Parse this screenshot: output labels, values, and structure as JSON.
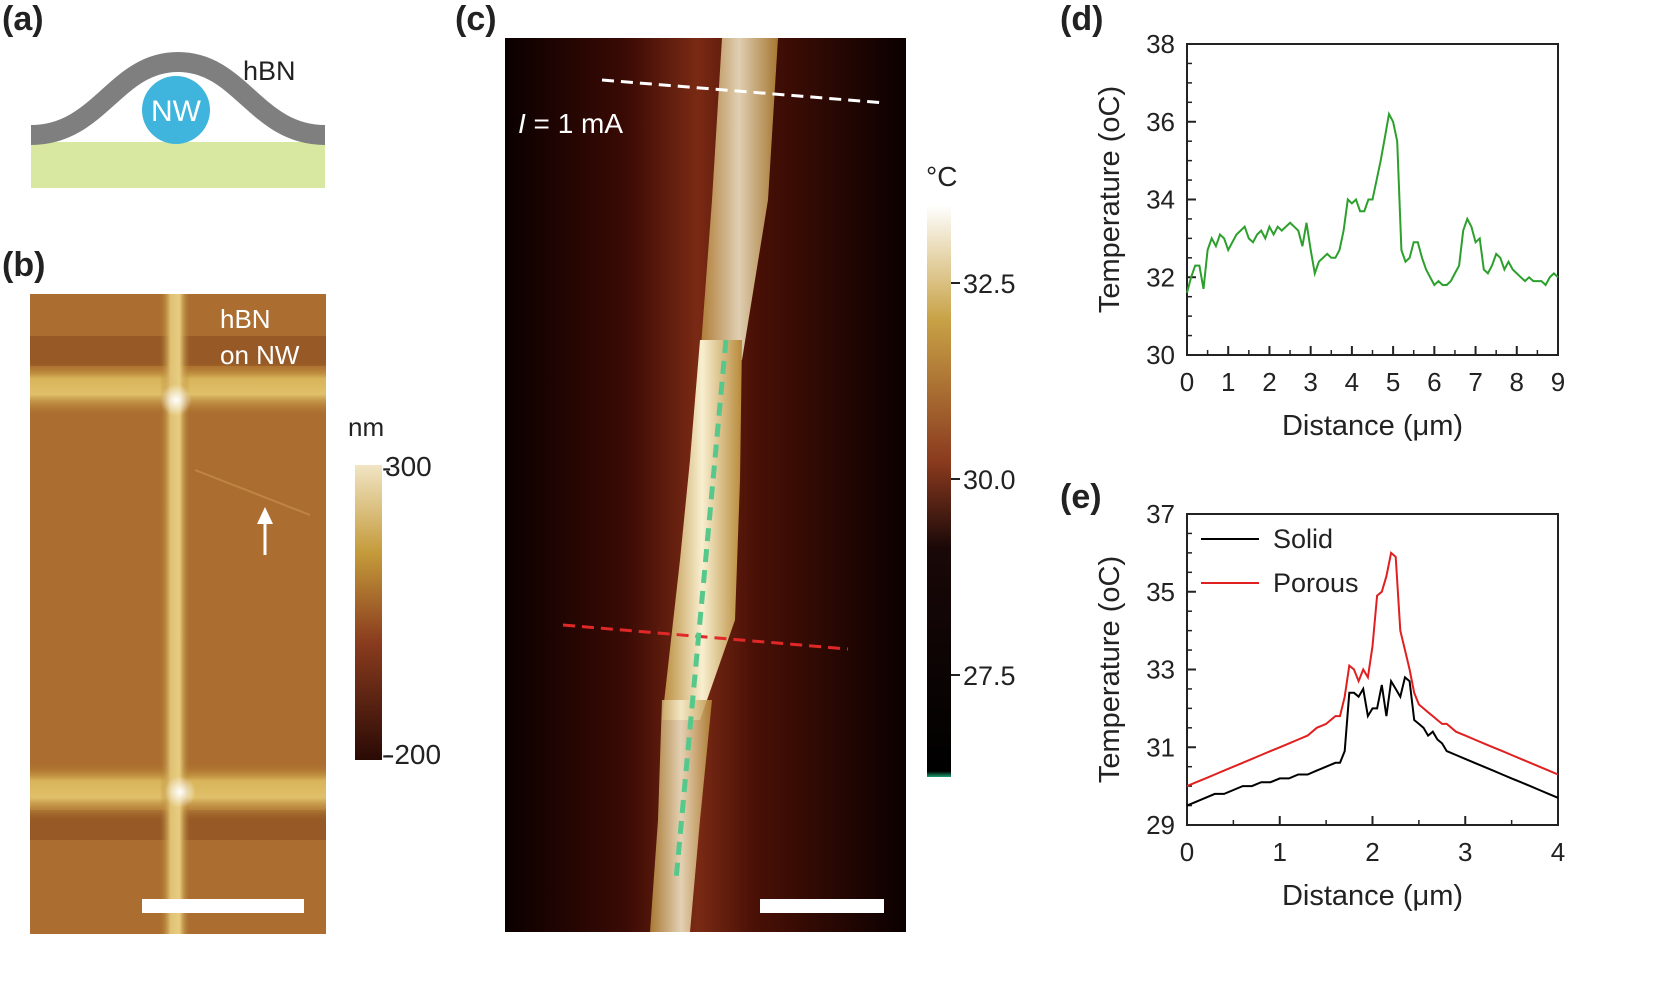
{
  "panels": {
    "a": {
      "label": "(a)",
      "material_label": "hBN",
      "wire_label": "NW",
      "colors": {
        "hbn": "#7f7f7f",
        "wire": "#3fb4dc",
        "substrate": "#d8e8a0"
      }
    },
    "b": {
      "label": "(b)",
      "image_caption_line1": "hBN",
      "image_caption_line2": "on NW",
      "colorbar_unit": "nm",
      "colorbar_max": "300",
      "colorbar_min": "-200"
    },
    "c": {
      "label": "(c)",
      "current_symbol": "I",
      "current_value": " = 1 mA",
      "colorbar_unit": "oC",
      "colorbar_ticks": [
        "32.5",
        "30.0",
        "27.5"
      ],
      "line_colors": {
        "white_cut": "#ffffff",
        "red_cut": "#e02828",
        "green_axis": "#56c88c"
      }
    },
    "d": {
      "label": "(d)",
      "xlabel": "Distance (μm)",
      "ylabel": "Temperature (oC)",
      "line_color": "#2ca02c"
    },
    "e": {
      "label": "(e)",
      "xlabel": "Distance (μm)",
      "ylabel": "Temperature (oC)",
      "legend": [
        "Solid",
        "Porous"
      ]
    }
  },
  "chart_data": [
    {
      "type": "line",
      "panel": "d",
      "xlabel": "Distance (μm)",
      "ylabel": "Temperature (oC)",
      "xlim": [
        0,
        9
      ],
      "ylim": [
        30,
        38
      ],
      "xticks": [
        0,
        1,
        2,
        3,
        4,
        5,
        6,
        7,
        8,
        9
      ],
      "yticks": [
        30,
        32,
        34,
        36,
        38
      ],
      "series": [
        {
          "color": "#2ca02c",
          "x": [
            0,
            0.1,
            0.2,
            0.3,
            0.4,
            0.5,
            0.6,
            0.7,
            0.8,
            0.9,
            1.0,
            1.1,
            1.2,
            1.3,
            1.4,
            1.5,
            1.6,
            1.7,
            1.8,
            1.9,
            2.0,
            2.1,
            2.2,
            2.3,
            2.4,
            2.5,
            2.6,
            2.7,
            2.8,
            2.9,
            3.0,
            3.1,
            3.2,
            3.3,
            3.4,
            3.5,
            3.6,
            3.7,
            3.8,
            3.9,
            4.0,
            4.1,
            4.2,
            4.3,
            4.4,
            4.5,
            4.6,
            4.7,
            4.8,
            4.9,
            5.0,
            5.1,
            5.2,
            5.3,
            5.4,
            5.5,
            5.6,
            5.7,
            5.8,
            5.9,
            6.0,
            6.1,
            6.2,
            6.3,
            6.4,
            6.5,
            6.6,
            6.7,
            6.8,
            6.9,
            7.0,
            7.1,
            7.2,
            7.3,
            7.4,
            7.5,
            7.6,
            7.7,
            7.8,
            7.9,
            8.0,
            8.1,
            8.2,
            8.3,
            8.4,
            8.5,
            8.6,
            8.7,
            8.8,
            8.9,
            9.0
          ],
          "y": [
            31.6,
            32.0,
            32.3,
            32.3,
            31.7,
            32.7,
            33.0,
            32.8,
            33.1,
            33.0,
            32.7,
            32.9,
            33.1,
            33.2,
            33.3,
            33.0,
            32.9,
            33.1,
            33.2,
            33.0,
            33.3,
            33.1,
            33.3,
            33.2,
            33.3,
            33.4,
            33.3,
            33.2,
            32.8,
            33.4,
            32.7,
            32.1,
            32.4,
            32.5,
            32.6,
            32.5,
            32.5,
            32.7,
            33.2,
            34.0,
            33.9,
            34.0,
            33.7,
            33.7,
            34.0,
            34.0,
            34.5,
            35.0,
            35.6,
            36.2,
            36.0,
            35.5,
            32.7,
            32.4,
            32.5,
            32.9,
            32.9,
            32.5,
            32.2,
            32.0,
            31.8,
            31.9,
            31.8,
            31.8,
            31.9,
            32.1,
            32.3,
            33.2,
            33.5,
            33.3,
            32.9,
            33.0,
            32.2,
            32.1,
            32.3,
            32.6,
            32.5,
            32.2,
            32.4,
            32.2,
            32.1,
            32.0,
            31.9,
            32.0,
            31.9,
            31.9,
            31.9,
            31.8,
            32.0,
            32.1,
            32.0
          ]
        }
      ]
    },
    {
      "type": "line",
      "panel": "e",
      "xlabel": "Distance (μm)",
      "ylabel": "Temperature (oC)",
      "xlim": [
        0,
        4
      ],
      "ylim": [
        29,
        37
      ],
      "xticks": [
        0,
        1,
        2,
        3,
        4
      ],
      "yticks": [
        29,
        31,
        33,
        35,
        37
      ],
      "legend": "top-left",
      "series": [
        {
          "name": "Solid",
          "color": "#000000",
          "x": [
            0,
            0.1,
            0.2,
            0.3,
            0.4,
            0.5,
            0.6,
            0.7,
            0.8,
            0.9,
            1.0,
            1.1,
            1.2,
            1.3,
            1.4,
            1.5,
            1.6,
            1.65,
            1.7,
            1.75,
            1.8,
            1.85,
            1.9,
            1.95,
            2.0,
            2.05,
            2.1,
            2.15,
            2.2,
            2.25,
            2.3,
            2.35,
            2.4,
            2.45,
            2.5,
            2.55,
            2.6,
            2.65,
            2.7,
            2.75,
            2.8,
            2.9,
            3.0,
            3.1,
            3.2,
            3.3,
            3.4,
            3.5,
            3.6,
            3.7,
            3.8,
            3.9,
            4.0
          ],
          "y": [
            29.5,
            29.6,
            29.7,
            29.8,
            29.8,
            29.9,
            30.0,
            30.0,
            30.1,
            30.1,
            30.2,
            30.2,
            30.3,
            30.3,
            30.4,
            30.5,
            30.6,
            30.6,
            30.9,
            32.4,
            32.4,
            32.3,
            32.5,
            31.8,
            32.0,
            32.0,
            32.6,
            31.8,
            32.7,
            32.5,
            32.3,
            32.8,
            32.7,
            31.7,
            31.6,
            31.5,
            31.3,
            31.4,
            31.2,
            31.1,
            30.9,
            30.8,
            30.7,
            30.6,
            30.5,
            30.4,
            30.3,
            30.2,
            30.1,
            30.0,
            29.9,
            29.8,
            29.7
          ]
        },
        {
          "name": "Porous",
          "color": "#e02020",
          "x": [
            0,
            0.1,
            0.2,
            0.3,
            0.4,
            0.5,
            0.6,
            0.7,
            0.8,
            0.9,
            1.0,
            1.1,
            1.2,
            1.3,
            1.4,
            1.5,
            1.6,
            1.65,
            1.7,
            1.75,
            1.8,
            1.85,
            1.9,
            1.95,
            2.0,
            2.05,
            2.1,
            2.15,
            2.2,
            2.25,
            2.3,
            2.35,
            2.4,
            2.45,
            2.5,
            2.55,
            2.6,
            2.65,
            2.7,
            2.75,
            2.8,
            2.9,
            3.0,
            3.1,
            3.2,
            3.3,
            3.4,
            3.5,
            3.6,
            3.7,
            3.8,
            3.9,
            4.0
          ],
          "y": [
            30.0,
            30.1,
            30.2,
            30.3,
            30.4,
            30.5,
            30.6,
            30.7,
            30.8,
            30.9,
            31.0,
            31.1,
            31.2,
            31.3,
            31.5,
            31.6,
            31.8,
            31.8,
            32.3,
            33.1,
            33.0,
            32.7,
            33.0,
            32.8,
            33.6,
            34.9,
            35.0,
            35.4,
            36.0,
            35.9,
            34.0,
            33.5,
            33.0,
            32.4,
            32.1,
            32.0,
            31.9,
            31.8,
            31.7,
            31.6,
            31.6,
            31.4,
            31.3,
            31.2,
            31.1,
            31.0,
            30.9,
            30.8,
            30.7,
            30.6,
            30.5,
            30.4,
            30.3
          ]
        }
      ]
    }
  ]
}
